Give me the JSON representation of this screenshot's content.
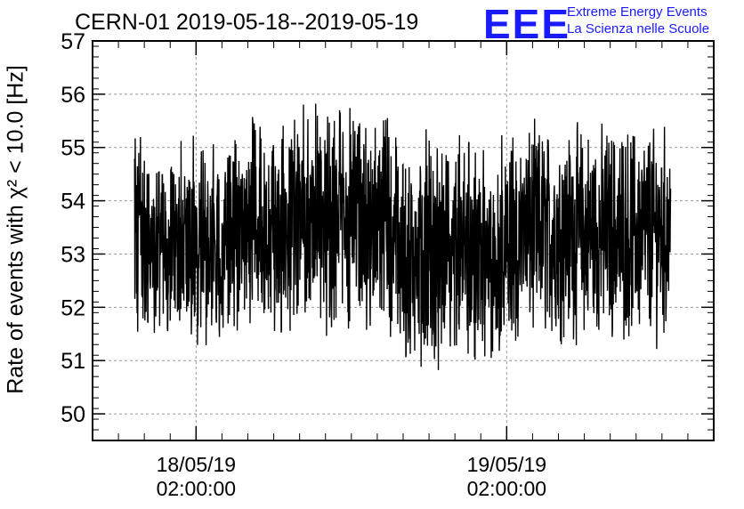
{
  "chart_data": {
    "type": "line",
    "title": "CERN-01 2019-05-18--2019-05-19",
    "ylabel": "Rate of events with χ² < 10.0 [Hz]",
    "ylim": [
      49.5,
      57
    ],
    "yticks": [
      50,
      51,
      52,
      53,
      54,
      55,
      56,
      57
    ],
    "xlim": [
      "2019-05-17 18:00",
      "2019-05-19 18:00"
    ],
    "xticks": [
      {
        "line1": "18/05/19",
        "line2": "02:00:00",
        "time": "2019-05-18 02:00"
      },
      {
        "line1": "19/05/19",
        "line2": "02:00:00",
        "time": "2019-05-19 02:00"
      }
    ],
    "grid": true,
    "series": [
      {
        "approx_range": [
          "2019-05-17 21:15",
          "2019-05-19 14:40"
        ],
        "color": "#000000",
        "y_envelope_min": 50.1,
        "y_envelope_max": 56.4,
        "segments": [
          {
            "from": "2019-05-17 21:15",
            "to": "2019-05-18 06:00",
            "mean": 53.3,
            "amp": 2.3
          },
          {
            "from": "2019-05-18 06:00",
            "to": "2019-05-18 17:00",
            "mean": 53.6,
            "amp": 2.5
          },
          {
            "from": "2019-05-18 17:00",
            "to": "2019-05-19 03:00",
            "mean": 53.0,
            "amp": 2.6
          },
          {
            "from": "2019-05-19 03:00",
            "to": "2019-05-19 14:40",
            "mean": 53.4,
            "amp": 2.4
          }
        ]
      }
    ]
  },
  "logo": {
    "mark": "EEE",
    "line1": "Extreme Energy Events",
    "line2": "La Scienza nelle Scuole",
    "color": "#1a1aff"
  }
}
